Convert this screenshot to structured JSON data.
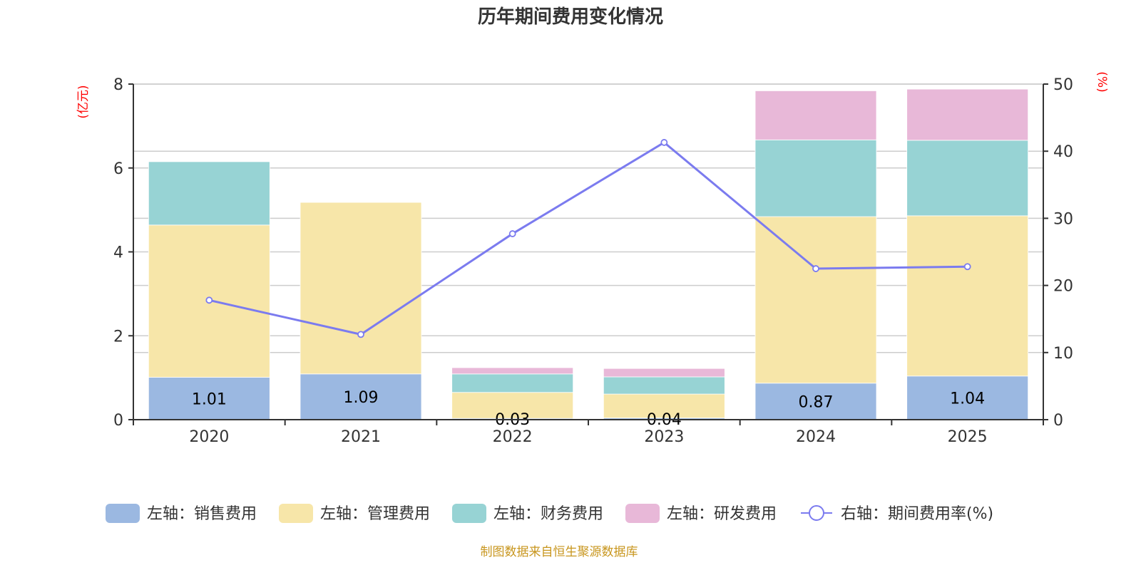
{
  "chart_data": {
    "type": "bar",
    "title": "历年期间费用变化情况",
    "categories": [
      "2020",
      "2021",
      "2022",
      "2023",
      "2024",
      "2025"
    ],
    "left_axis": {
      "unit_label": "(亿元)",
      "ylim": [
        0,
        8
      ],
      "ticks": [
        "0",
        "2",
        "4",
        "6",
        "8"
      ]
    },
    "right_axis": {
      "unit_label": "(%)",
      "ylim": [
        0,
        50
      ],
      "ticks": [
        "0",
        "10",
        "20",
        "30",
        "40",
        "50"
      ]
    },
    "grid": true,
    "stacked": true,
    "series": [
      {
        "name": "左轴：销售费用",
        "axis": "left",
        "type": "bar",
        "color": "#9bb8e1",
        "values": [
          1.01,
          1.09,
          0.03,
          0.04,
          0.87,
          1.04
        ],
        "labels": [
          "1.01",
          "1.09",
          "0.03",
          "0.04",
          "0.87",
          "1.04"
        ]
      },
      {
        "name": "左轴：管理费用",
        "axis": "left",
        "type": "bar",
        "color": "#f7e6a9",
        "values": [
          3.63,
          4.09,
          0.62,
          0.57,
          3.97,
          3.82
        ]
      },
      {
        "name": "左轴：财务费用",
        "axis": "left",
        "type": "bar",
        "color": "#97d3d4",
        "values": [
          1.51,
          0,
          0.44,
          0.41,
          1.83,
          1.8
        ]
      },
      {
        "name": "左轴：研发费用",
        "axis": "left",
        "type": "bar",
        "color": "#e8b8d8",
        "values": [
          0,
          0,
          0.15,
          0.2,
          1.17,
          1.22
        ]
      },
      {
        "name": "右轴：期间费用率(%)",
        "axis": "right",
        "type": "line",
        "color": "#7b7bef",
        "values": [
          17.8,
          12.7,
          27.7,
          41.3,
          22.5,
          22.8
        ]
      }
    ],
    "legend_position": "bottom",
    "source": "制图数据来自恒生聚源数据库"
  }
}
